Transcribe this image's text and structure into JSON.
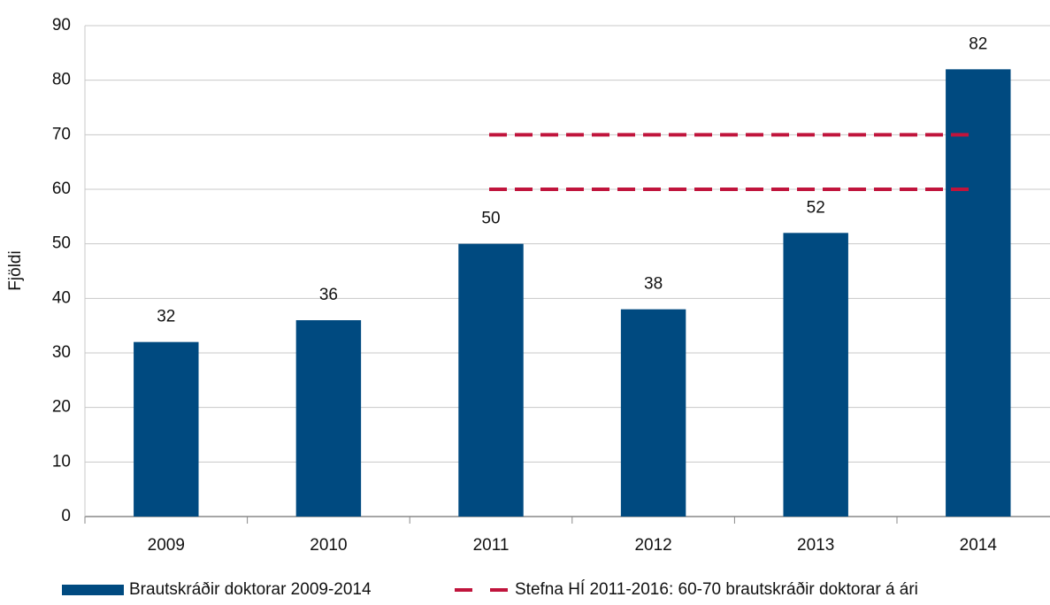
{
  "chart_data": {
    "type": "bar",
    "ylabel": "Fjöldi",
    "categories": [
      "2009",
      "2010",
      "2011",
      "2012",
      "2013",
      "2014"
    ],
    "series": [
      {
        "name": "Brautskráðir doktorar 2009-2014",
        "color": "#004a80",
        "values": [
          32,
          36,
          50,
          38,
          52,
          82
        ]
      }
    ],
    "target": {
      "name": "Stefna HÍ 2011-2016: 60-70 brautskráðir doktorar á ári",
      "color": "#c0143c",
      "values": [
        60,
        70
      ],
      "span": [
        "2011",
        "2014"
      ]
    },
    "ylim": [
      0,
      90
    ],
    "yticks": [
      0,
      10,
      20,
      30,
      40,
      50,
      60,
      70,
      80,
      90
    ],
    "grid": true,
    "legend": "bottom"
  }
}
